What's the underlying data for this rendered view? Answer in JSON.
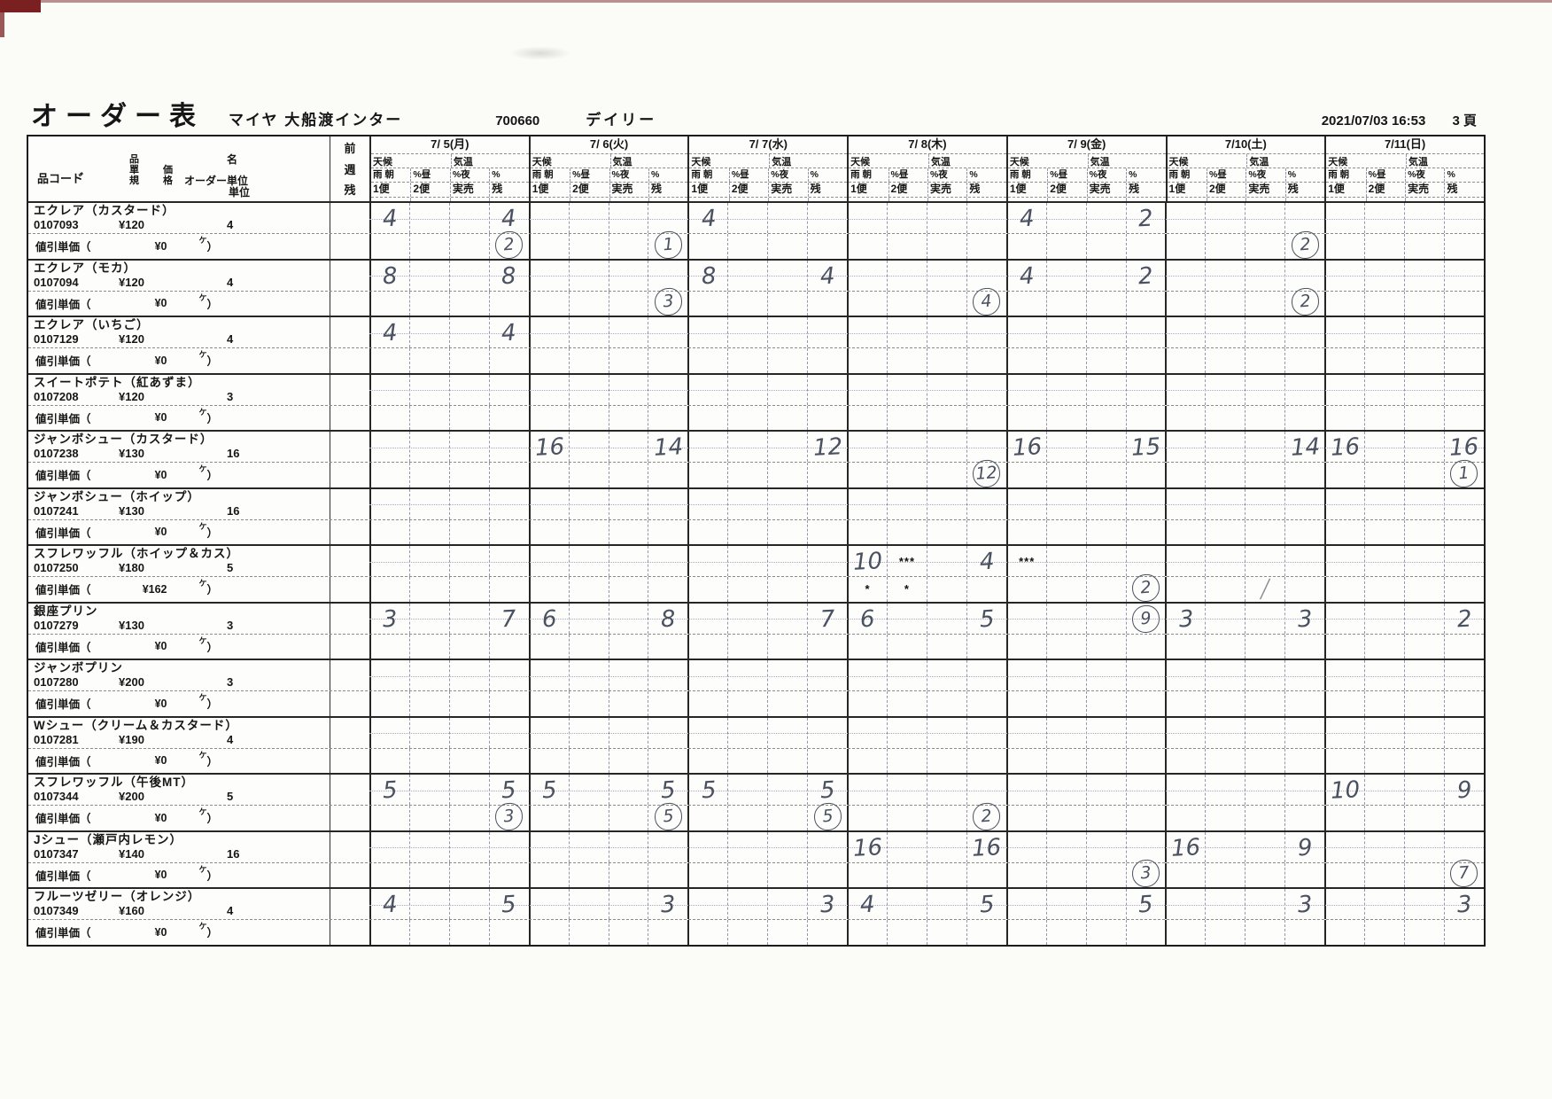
{
  "header": {
    "title": "オーダー表",
    "store": "マイヤ 大船渡インター",
    "store_code": "700660",
    "category": "デイリー",
    "printed_at": "2021/07/03  16:53",
    "page": "3 頁"
  },
  "table": {
    "left_header": {
      "code": "品コード゙",
      "stack_a": [
        "品",
        "單",
        "規"
      ],
      "stack_b": [
        "価",
        "格"
      ],
      "name": "名",
      "order_unit": "オーダー単位",
      "unit": "単位"
    },
    "prev_week_label": [
      "前",
      "週",
      "残"
    ],
    "days": [
      "7/ 5(月)",
      "7/ 6(火)",
      "7/ 7(水)",
      "7/ 8(木)",
      "7/ 9(金)",
      "7/10(土)",
      "7/11(日)"
    ],
    "weather_label": "天候",
    "temp_label": "気温",
    "weather_cells": [
      "雨 朝",
      "%昼",
      "%夜",
      "%"
    ],
    "subcols": [
      "1便",
      "2便",
      "実売",
      "残"
    ],
    "discount_label": "値引単価（",
    "discount_unit": "ケ",
    "discount_close": "）"
  },
  "products": [
    {
      "name": "エクレア（カスタード）",
      "code": "0107093",
      "price": "¥120",
      "unit": "4",
      "discount": "¥0",
      "hw": {
        "0.0": "4",
        "0.3": "4",
        "2.0": "4",
        "4.0": "4",
        "4.3": "2"
      },
      "circled": {
        "0.3": "2",
        "1.3": "1",
        "5.3": "2"
      }
    },
    {
      "name": "エクレア（モカ）",
      "code": "0107094",
      "price": "¥120",
      "unit": "4",
      "discount": "¥0",
      "hw": {
        "0.0": "8",
        "0.3": "8",
        "2.0": "8",
        "2.3": "4",
        "4.0": "4",
        "4.3": "2"
      },
      "circled": {
        "1.3": "3",
        "3.3": "4",
        "5.3": "2"
      }
    },
    {
      "name": "エクレア（いちご）",
      "code": "0107129",
      "price": "¥120",
      "unit": "4",
      "discount": "¥0",
      "hw": {
        "0.0": "4",
        "0.3": "4"
      }
    },
    {
      "name": "スイートポテト（紅あずま）",
      "code": "0107208",
      "price": "¥120",
      "unit": "3",
      "discount": "¥0"
    },
    {
      "name": "ジャンボシュー（カスタード）",
      "code": "0107238",
      "price": "¥130",
      "unit": "16",
      "discount": "¥0",
      "hw": {
        "1.0": "16",
        "1.3": "14",
        "2.3": "12",
        "4.0": "16",
        "4.3": "15",
        "5.3": "14",
        "6.0": "16",
        "6.3": "16"
      },
      "circled": {
        "3.3": "12",
        "6.3": "1"
      }
    },
    {
      "name": "ジャンボシュー（ホイップ）",
      "code": "0107241",
      "price": "¥130",
      "unit": "16",
      "discount": "¥0"
    },
    {
      "name": "スフレワッフル（ホイップ＆カス）",
      "code": "0107250",
      "price": "¥180",
      "unit": "5",
      "discount": "¥162",
      "hw": {
        "3.0": "10",
        "3.3": "4"
      },
      "printed": {
        "3.1": "***",
        "4.0": "***"
      },
      "printed_discount": {
        "3.0": "*",
        "3.1": "*"
      },
      "circled": {
        "4.3": "2"
      },
      "hw_discount": {
        "5.2": "/"
      }
    },
    {
      "name": "銀座プリン",
      "code": "0107279",
      "price": "¥130",
      "unit": "3",
      "discount": "¥0",
      "hw": {
        "0.0": "3",
        "0.3": "7",
        "1.0": "6",
        "1.3": "8",
        "2.3": "7",
        "3.0": "6",
        "3.3": "5",
        "5.0": "3",
        "5.3": "3",
        "6.3": "2"
      },
      "hw_circled": {
        "4.3": "9"
      }
    },
    {
      "name": "ジャンボプリン",
      "code": "0107280",
      "price": "¥200",
      "unit": "3",
      "discount": "¥0"
    },
    {
      "name": "Wシュー（クリーム＆カスタード）",
      "code": "0107281",
      "price": "¥190",
      "unit": "4",
      "discount": "¥0"
    },
    {
      "name": "スフレワッフル（午後MT）",
      "code": "0107344",
      "price": "¥200",
      "unit": "5",
      "discount": "¥0",
      "hw": {
        "0.0": "5",
        "0.3": "5",
        "1.0": "5",
        "1.3": "5",
        "2.0": "5",
        "2.3": "5",
        "6.0": "10",
        "6.3": "9"
      },
      "circled": {
        "0.3": "3",
        "1.3": "5",
        "2.3": "5",
        "3.3": "2"
      }
    },
    {
      "name": "Jシュー（瀬戸内レモン）",
      "code": "0107347",
      "price": "¥140",
      "unit": "16",
      "discount": "¥0",
      "hw": {
        "3.0": "16",
        "3.3": "16",
        "5.0": "16",
        "5.3": "9"
      },
      "circled": {
        "4.3": "3",
        "6.3": "7"
      }
    },
    {
      "name": "フルーツゼリー（オレンジ）",
      "code": "0107349",
      "price": "¥160",
      "unit": "4",
      "discount": "¥0",
      "hw": {
        "0.0": "4",
        "0.3": "5",
        "1.3": "3",
        "2.3": "3",
        "3.0": "4",
        "3.3": "5",
        "4.3": "5",
        "5.3": "3",
        "6.3": "3"
      }
    }
  ]
}
